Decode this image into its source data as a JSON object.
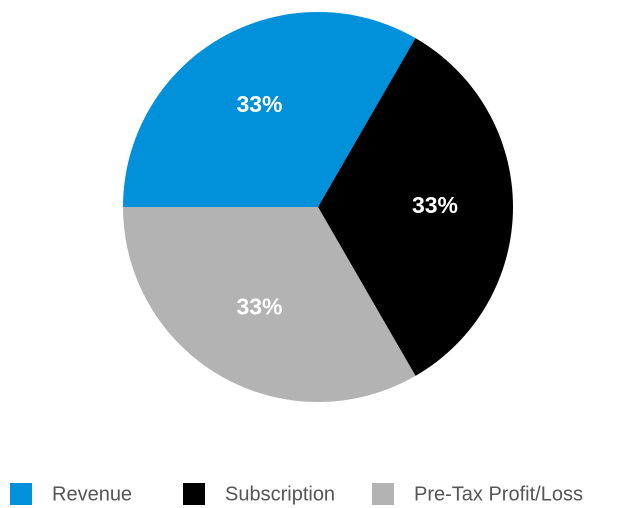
{
  "chart_data": {
    "type": "pie",
    "categories": [
      "Revenue",
      "Subscription",
      "Pre-Tax Profit/Loss"
    ],
    "values": [
      33,
      33,
      33
    ],
    "value_labels": [
      "33%",
      "33%",
      "33%"
    ],
    "colors": [
      "#0091da",
      "#000000",
      "#b3b3b3"
    ]
  }
}
